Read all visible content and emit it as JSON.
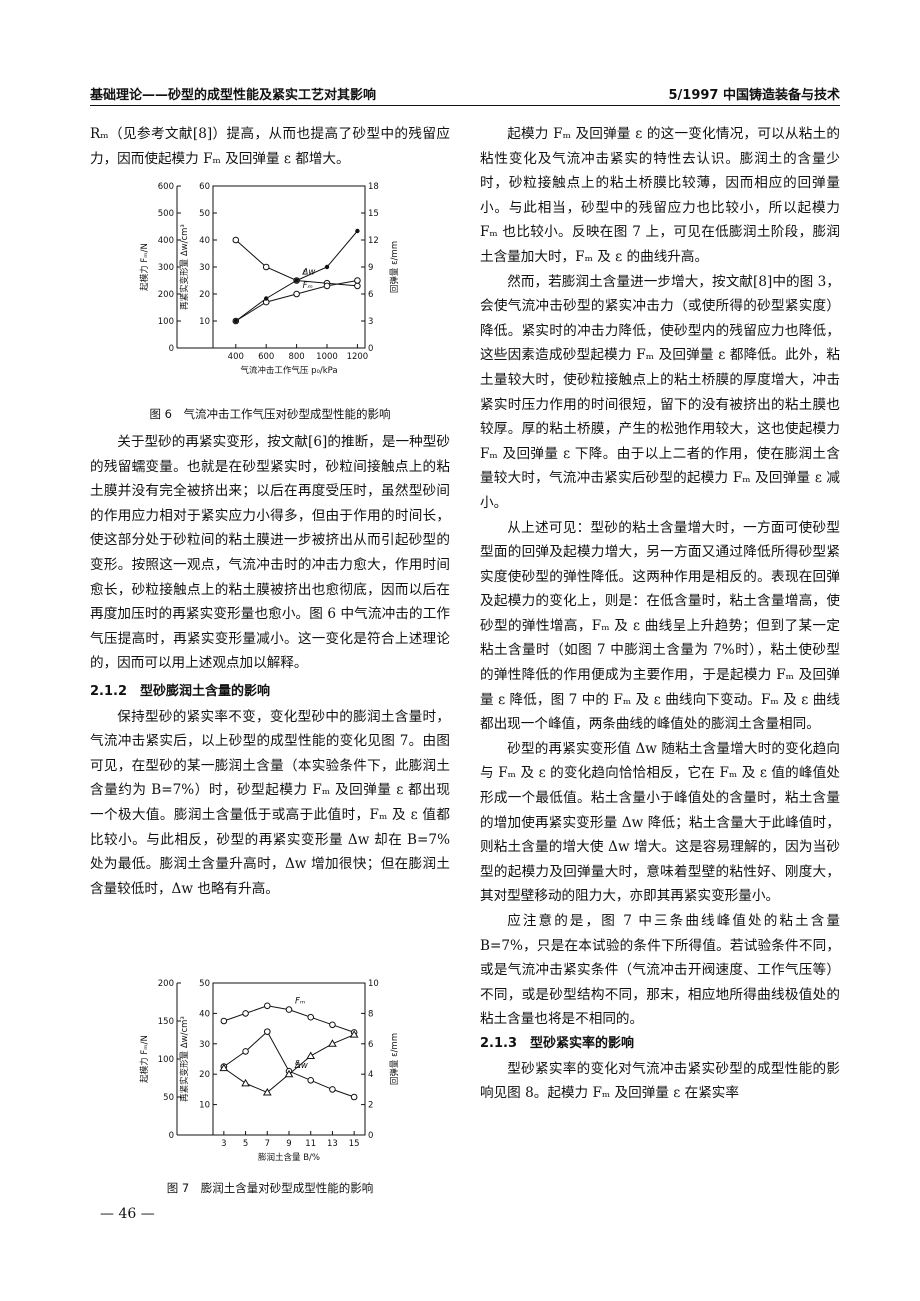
{
  "header": {
    "left": "基础理论——砂型的成型性能及紧实工艺对其影响",
    "right": "5/1997 中国铸造装备与技术"
  },
  "left_column": {
    "p1": "Rₘ（见参考文献[8]）提高，从而也提高了砂型中的残留应力，因而使起模力 Fₘ 及回弹量 ε 都增大。",
    "figure6": {
      "caption": "图 6　气流冲击工作气压对砂型成型性能的影响",
      "x_label": "气流冲击工作气压 p₀/kPa",
      "xlim": [
        250,
        1250
      ],
      "xticks": [
        400,
        600,
        800,
        1000,
        1200
      ],
      "axes": [
        {
          "label": "起模力 Fₘ/N",
          "ylim": [
            0,
            600
          ],
          "yticks": [
            0,
            100,
            200,
            300,
            400,
            500,
            600
          ]
        },
        {
          "label": "再紧实变形量 Δw/cm³",
          "ylim": [
            0,
            60
          ],
          "yticks": [
            10,
            20,
            30,
            40,
            50,
            60
          ]
        },
        {
          "label": "回弹量 ε/mm",
          "ylim": [
            0,
            18
          ],
          "yticks": [
            0,
            3,
            6,
            9,
            12,
            15,
            18
          ]
        }
      ],
      "x": [
        400,
        600,
        800,
        1000,
        1200
      ],
      "series": [
        {
          "name": "Δw",
          "axis": 1,
          "marker": "circle",
          "values": [
            40,
            30,
            25,
            24,
            23
          ]
        },
        {
          "name": "Fₘ",
          "axis": 0,
          "marker": "circle",
          "values": [
            100,
            170,
            200,
            230,
            250
          ]
        },
        {
          "name": "ε",
          "axis": 2,
          "marker": "dot",
          "values": [
            3,
            5.5,
            7.5,
            9,
            13
          ]
        }
      ]
    },
    "p2": "关于型砂的再紧实变形，按文献[6]的推断，是一种型砂的残留蠕变量。也就是在砂型紧实时，砂粒间接触点上的粘土膜并没有完全被挤出来；以后在再度受压时，虽然型砂间的作用应力相对于紧实应力小得多，但由于作用的时间长，使这部分处于砂粒间的粘土膜进一步被挤出从而引起砂型的变形。按照这一观点，气流冲击时的冲击力愈大，作用时间愈长，砂粒接触点上的粘土膜被挤出也愈彻底，因而以后在再度加压时的再紧实变形量也愈小。图 6 中气流冲击的工作气压提高时，再紧实变形量减小。这一变化是符合上述理论的，因而可以用上述观点加以解释。",
    "heading": "2.1.2　型砂膨润土含量的影响",
    "p3": "保持型砂的紧实率不变，变化型砂中的膨润土含量时，气流冲击紧实后，以上砂型的成型性能的变化见图 7。由图可见，在型砂的某一膨润土含量（本实验条件下，此膨润土含量约为 B=7%）时，砂型起模力 Fₘ 及回弹量 ε 都出现一个极大值。膨润土含量低于或高于此值时，Fₘ 及 ε 值都比较小。与此相反，砂型的再紧实变形量 Δw 却在 B=7% 处为最低。膨润土含量升高时，Δw 增加很快；但在膨润土含量较低时，Δw 也略有升高。",
    "figure7": {
      "caption": "图 7　膨润土含量对砂型成型性能的影响",
      "x_label": "膨润土含量 B/%",
      "xlim": [
        2,
        16
      ],
      "xticks": [
        3,
        5,
        7,
        9,
        11,
        13,
        15
      ],
      "axes": [
        {
          "label": "起模力 Fₘ/N",
          "ylim": [
            0,
            200
          ],
          "yticks": [
            0,
            50,
            100,
            150,
            200
          ]
        },
        {
          "label": "再紧实变形量 Δw/cm³",
          "ylim": [
            0,
            50
          ],
          "yticks": [
            10,
            20,
            30,
            40,
            50
          ]
        },
        {
          "label": "回弹量 ε/mm",
          "ylim": [
            0,
            10
          ],
          "yticks": [
            0,
            2,
            4,
            6,
            8,
            10
          ]
        }
      ],
      "x": [
        3,
        5,
        7,
        9,
        11,
        13,
        15
      ],
      "series": [
        {
          "name": "Fₘ",
          "axis": 0,
          "marker": "circle",
          "values": [
            150,
            160,
            170,
            165,
            155,
            145,
            135
          ]
        },
        {
          "name": "ε",
          "axis": 2,
          "marker": "circle",
          "values": [
            4.5,
            5.5,
            6.8,
            4.2,
            3.6,
            3.0,
            2.5
          ]
        },
        {
          "name": "Δw",
          "axis": 1,
          "marker": "triangle",
          "values": [
            22,
            17,
            14,
            20,
            26,
            30,
            33
          ]
        }
      ]
    },
    "page_number": "— 46 —"
  },
  "right_column": {
    "paragraphs": [
      "起模力 Fₘ 及回弹量 ε 的这一变化情况，可以从粘土的粘性变化及气流冲击紧实的特性去认识。膨润土的含量少时，砂粒接触点上的粘土桥膜比较薄，因而相应的回弹量小。与此相当，砂型中的残留应力也比较小，所以起模力 Fₘ 也比较小。反映在图 7 上，可见在低膨润土阶段，膨润土含量加大时，Fₘ 及 ε 的曲线升高。",
      "然而，若膨润土含量进一步增大，按文献[8]中的图 3，会使气流冲击砂型的紧实冲击力（或使所得的砂型紧实度）降低。紧实时的冲击力降低，使砂型内的残留应力也降低，这些因素造成砂型起模力 Fₘ 及回弹量 ε 都降低。此外，粘土量较大时，使砂粒接触点上的粘土桥膜的厚度增大，冲击紧实时压力作用的时间很短，留下的没有被挤出的粘土膜也较厚。厚的粘土桥膜，产生的松弛作用较大，这也使起模力 Fₘ 及回弹量 ε 下降。由于以上二者的作用，使在膨润土含量较大时，气流冲击紧实后砂型的起模力 Fₘ 及回弹量 ε 减小。",
      "从上述可见：型砂的粘土含量增大时，一方面可使砂型型面的回弹及起模力增大，另一方面又通过降低所得砂型紧实度使砂型的弹性降低。这两种作用是相反的。表现在回弹及起模力的变化上，则是：在低含量时，粘土含量增高，使砂型的弹性增高，Fₘ 及 ε 曲线呈上升趋势；但到了某一定粘土含量时（如图 7 中膨润土含量为 7%时），粘土使砂型的弹性降低的作用便成为主要作用，于是起模力 Fₘ 及回弹量 ε 降低，图 7 中的 Fₘ 及 ε 曲线向下变动。Fₘ 及 ε 曲线都出现一个峰值，两条曲线的峰值处的膨润土含量相同。",
      "砂型的再紧实变形值 Δw 随粘土含量增大时的变化趋向与 Fₘ 及 ε 的变化趋向恰恰相反，它在 Fₘ 及 ε 值的峰值处形成一个最低值。粘土含量小于峰值处的含量时，粘土含量的增加使再紧实变形量 Δw 降低；粘土含量大于此峰值时，则粘土含量的增大使 Δw 增大。这是容易理解的，因为当砂型的起模力及回弹量大时，意味着型壁的粘性好、刚度大，其对型壁移动的阻力大，亦即其再紧实变形量小。",
      "应注意的是，图 7 中三条曲线峰值处的粘土含量 B=7%，只是在本试验的条件下所得值。若试验条件不同，或是气流冲击紧实条件（气流冲击开阀速度、工作气压等）不同，或是砂型结构不同，那末，相应地所得曲线极值处的粘土含量也将是不相同的。"
    ],
    "heading": "2.1.3　型砂紧实率的影响",
    "last_paragraph": "型砂紧实率的变化对气流冲击紧实砂型的成型性能的影响见图 8。起模力 Fₘ 及回弹量 ε 在紧实率"
  }
}
